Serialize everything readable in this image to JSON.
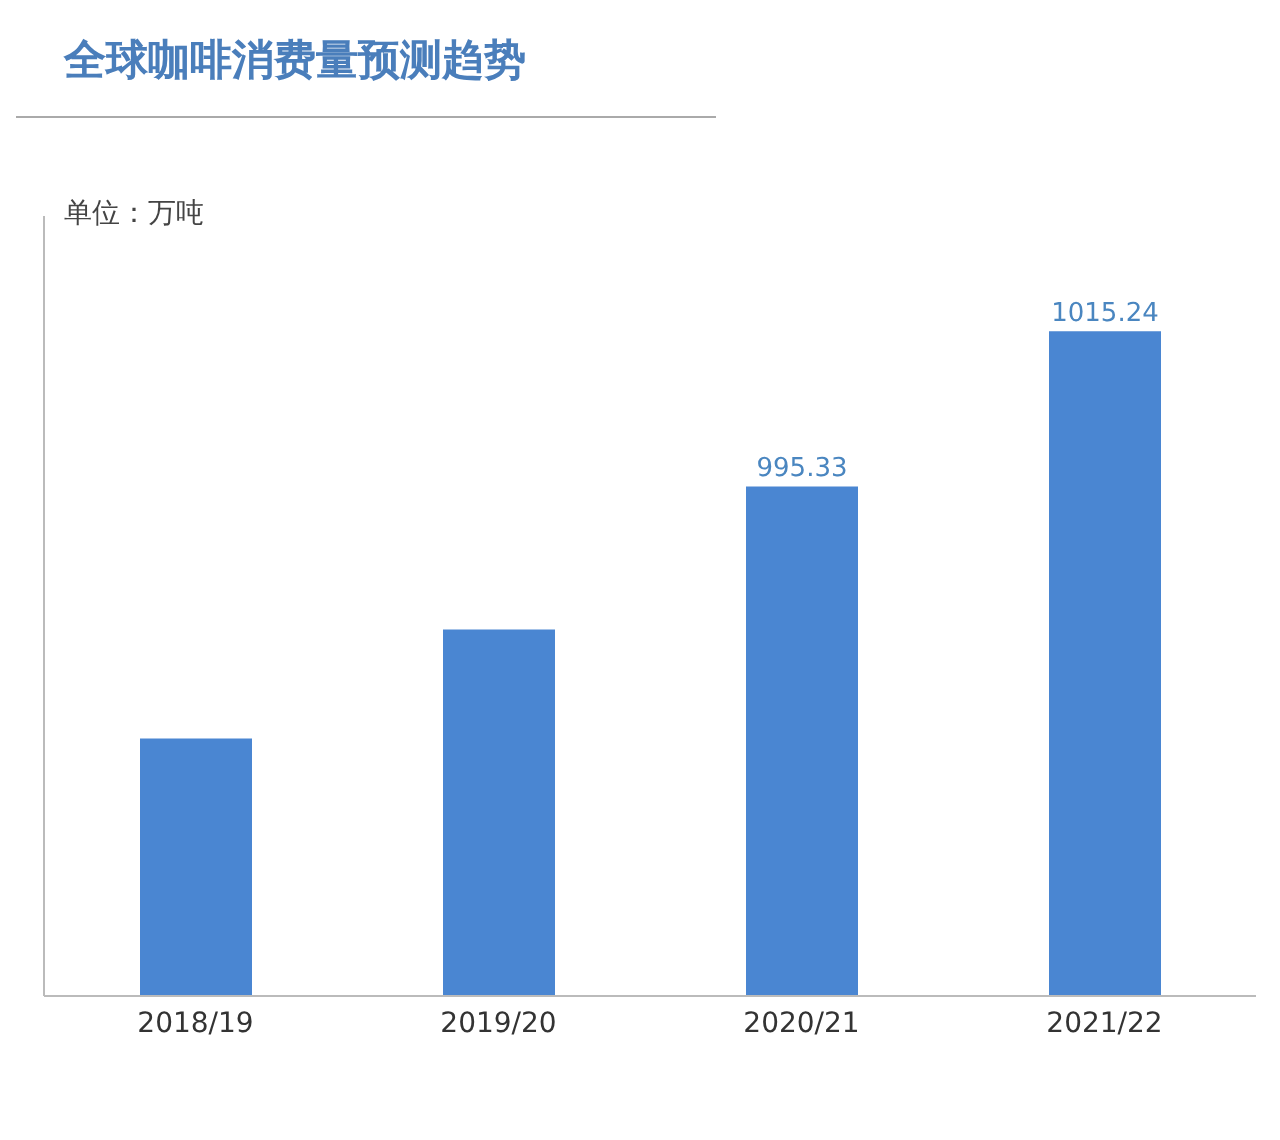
{
  "chart_data": {
    "type": "bar",
    "title": "全球咖啡消费量预测趋势",
    "subtitle": "单位：万吨",
    "categories": [
      "2018/19",
      "2019/20",
      "2020/21",
      "2021/22"
    ],
    "values": [
      963,
      977,
      995.33,
      1015.24
    ],
    "value_labels": [
      null,
      null,
      "995.33",
      "1015.24"
    ],
    "color": "#4a86d2",
    "ylim": [
      930,
      1030
    ],
    "tick_labels": "x",
    "grid": false
  }
}
